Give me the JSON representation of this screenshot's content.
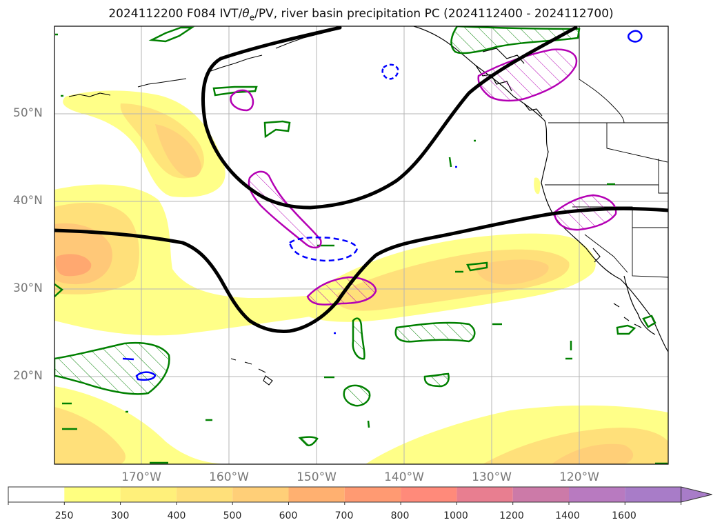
{
  "title": {
    "prefix": "2024112200 F084 IVT/",
    "theta": "θ",
    "theta_sub": "e",
    "suffix": "/PV, river basin precipitation PC (2024112400 - 2024112700)"
  },
  "axes": {
    "lat_labels": [
      "50°N",
      "40°N",
      "30°N",
      "20°N"
    ],
    "lon_labels": [
      "170°W",
      "160°W",
      "150°W",
      "140°W",
      "130°W",
      "120°W"
    ]
  },
  "colorbar": {
    "ticks": [
      "250",
      "300",
      "400",
      "500",
      "600",
      "700",
      "800",
      "1000",
      "1200",
      "1400",
      "1600"
    ],
    "colors": [
      "#ffffff",
      "#ffff80",
      "#fff07a",
      "#ffe07a",
      "#ffcf78",
      "#ffb070",
      "#ff9a72",
      "#ff8a7a",
      "#e87e90",
      "#cc7aa8",
      "#b87ac0",
      "#a87cc8"
    ]
  },
  "colors": {
    "ivt_contour": "#000000",
    "theta_e": "#008000",
    "pv": "#b400b4",
    "cold": "#0000ff"
  }
}
